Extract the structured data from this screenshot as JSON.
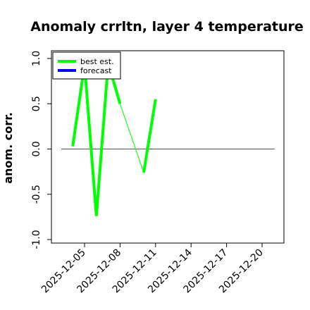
{
  "chart_data": {
    "type": "line",
    "title": "Anomaly crrltn, layer 4 temperature",
    "xlabel": "",
    "ylabel": "anom. corr.",
    "ylim": [
      -1.0,
      1.0
    ],
    "yticks": [
      "-1.0",
      "-0.5",
      "0.0",
      "0.5",
      "1.0"
    ],
    "xticks": [
      "2025-12-05",
      "2025-12-08",
      "2025-12-11",
      "2025-12-14",
      "2025-12-17",
      "2025-12-20"
    ],
    "highlight_tick": "2025-12-11",
    "highlight_color": "#228b22",
    "reference_line": 0.0,
    "legend": {
      "position": "top-left",
      "entries": [
        "best est.",
        "forecast"
      ]
    },
    "series": [
      {
        "name": "best est.",
        "color": "#00ff00",
        "segments": [
          {
            "style": "thick",
            "points": [
              [
                "2025-12-04",
                0.03
              ],
              [
                "2025-12-05",
                0.93
              ],
              [
                "2025-12-06",
                -0.74
              ],
              [
                "2025-12-07",
                0.95
              ],
              [
                "2025-12-08",
                0.5
              ]
            ]
          },
          {
            "style": "thin",
            "points": [
              [
                "2025-12-08",
                0.5
              ],
              [
                "2025-12-10",
                -0.26
              ]
            ]
          },
          {
            "style": "thick",
            "points": [
              [
                "2025-12-10",
                -0.26
              ],
              [
                "2025-12-11",
                0.55
              ]
            ]
          }
        ]
      },
      {
        "name": "forecast",
        "color": "#0000ff",
        "segments": []
      }
    ]
  }
}
